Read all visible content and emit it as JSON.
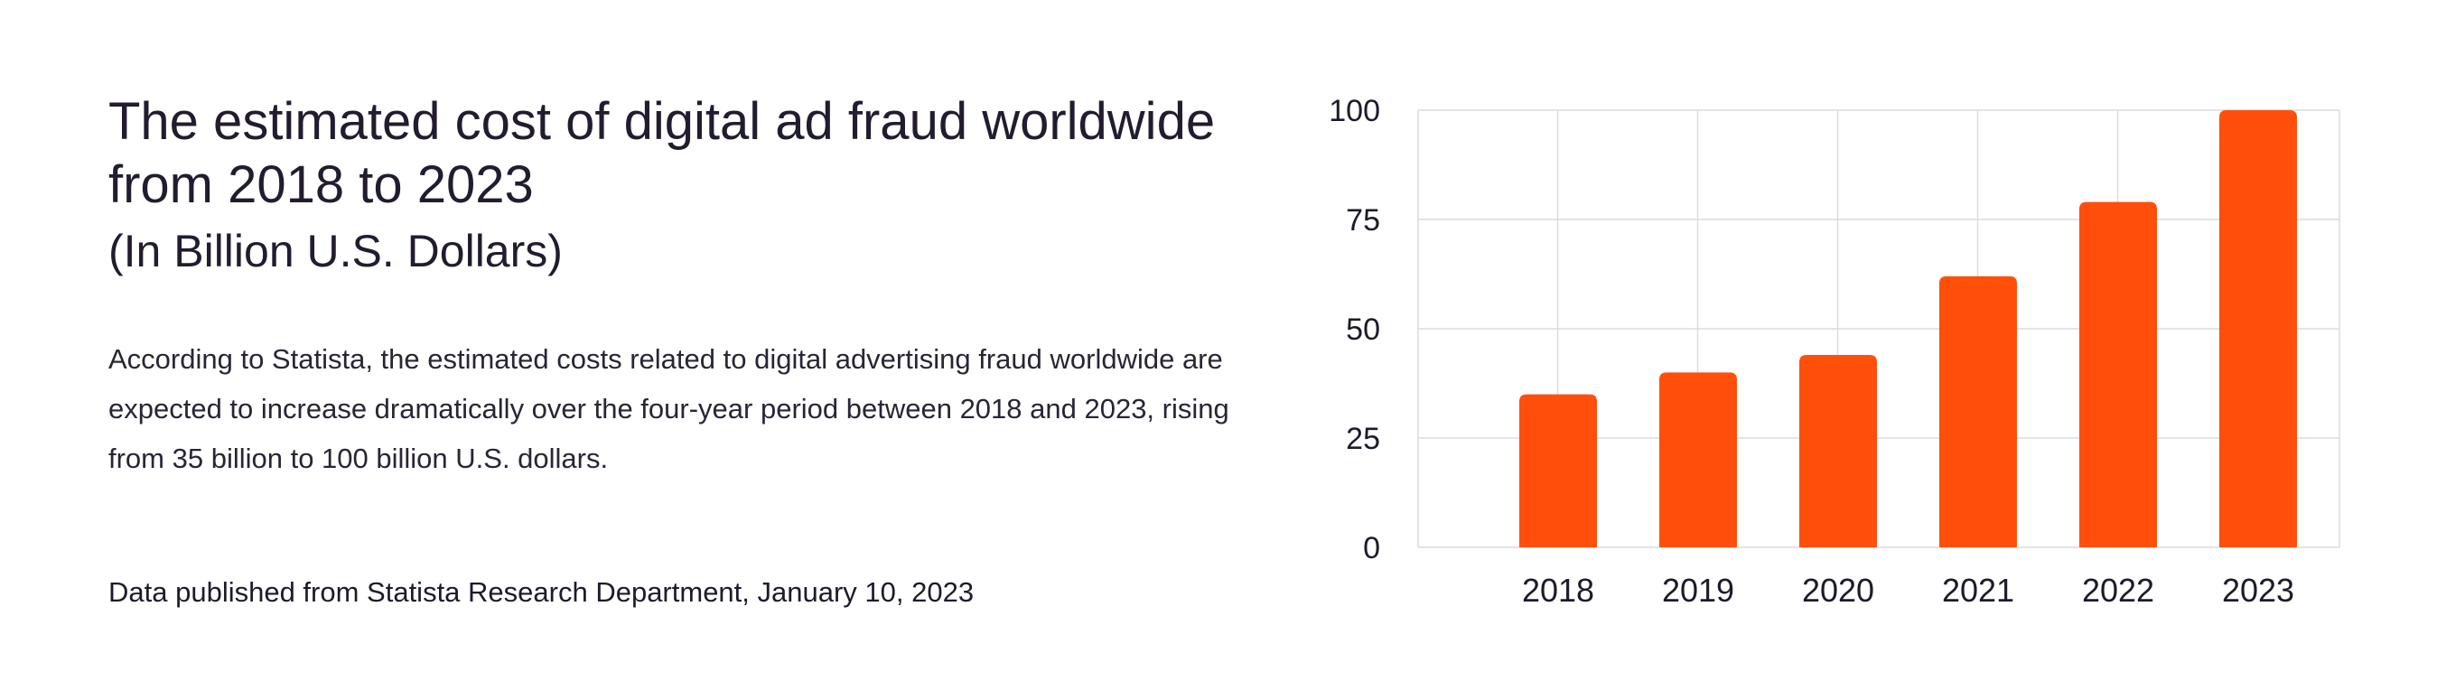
{
  "heading": {
    "title": "The estimated cost of digital ad fraud worldwide from 2018 to 2023",
    "subtitle": "(In Billion U.S. Dollars)"
  },
  "description": "According to Statista, the estimated costs related to digital advertising fraud worldwide are expected to increase dramatically over the four-year period between 2018 and 2023, rising from 35 billion to 100 billion U.S. dollars.",
  "source": "Data published from Statista Research Department, January 10, 2023",
  "colors": {
    "bar": "#ff4f0a",
    "grid": "#dcdcdc",
    "text": "#1f1a2a"
  },
  "chart_data": {
    "type": "bar",
    "title": "",
    "xlabel": "",
    "ylabel": "",
    "categories": [
      "2018",
      "2019",
      "2020",
      "2021",
      "2022",
      "2023"
    ],
    "values": [
      35,
      40,
      44,
      62,
      79,
      100
    ],
    "ylim": [
      0,
      100
    ],
    "yticks": [
      0,
      25,
      50,
      75,
      100
    ],
    "grid": true,
    "legend": "none"
  }
}
